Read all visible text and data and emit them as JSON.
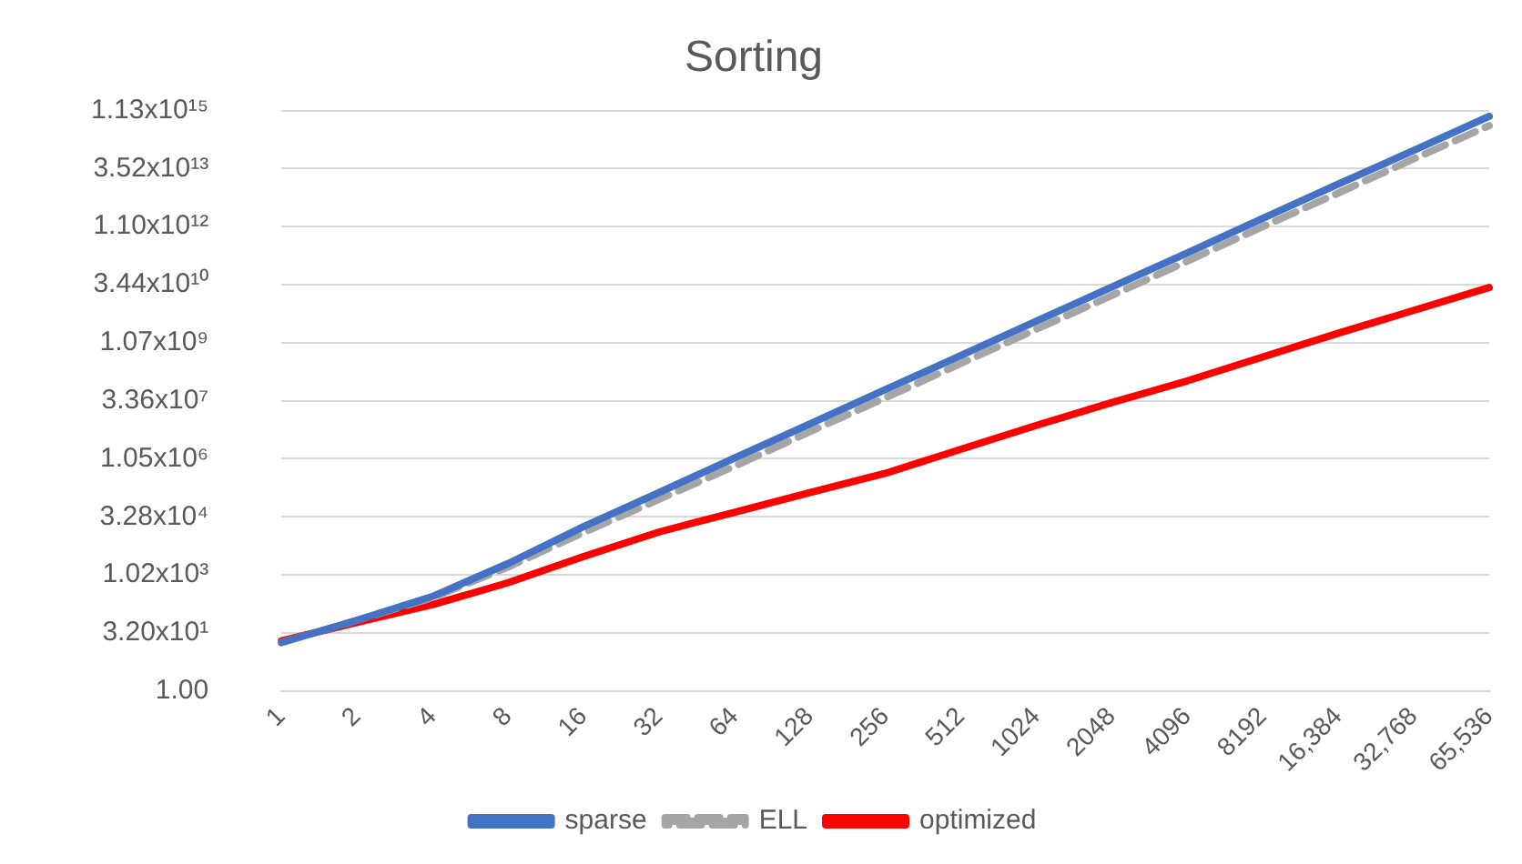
{
  "chart_data": {
    "type": "line",
    "title": "Sorting",
    "categories": [
      "1",
      "2",
      "4",
      "8",
      "16",
      "32",
      "64",
      "128",
      "256",
      "512",
      "1024",
      "2048",
      "4096",
      "8192",
      "16,384",
      "32,768",
      "65,536"
    ],
    "series": [
      {
        "name": "sparse",
        "color": "#4472c4",
        "line_style": "solid",
        "values": [
          18,
          68,
          282,
          2000,
          18200,
          140000,
          1090000,
          8400000,
          65000000,
          500000000,
          3900000000,
          30000000000,
          230000000000,
          1800000000000,
          14000000000000,
          104000000000000,
          800000000000000
        ]
      },
      {
        "name": "ELL",
        "color": "#a5a5a5",
        "line_style": "dashed",
        "values": [
          18,
          68,
          263,
          1630,
          12800,
          92700,
          670000,
          5300000,
          40000000,
          310000000,
          2400000000,
          18000000000,
          140000000000,
          1100000000000,
          8200000000000,
          63000000000000,
          460000000000000
        ]
      },
      {
        "name": "optimized",
        "color": "#ff0000",
        "line_style": "solid",
        "values": [
          20,
          60,
          172,
          640,
          3040,
          13200,
          43000,
          140000,
          440000,
          1850000,
          7700000,
          30000000,
          110000000,
          460000000,
          1900000000,
          7400000000,
          29000000000
        ]
      }
    ],
    "log": "y",
    "ylim": [
      1,
      1125899906842624
    ],
    "yticks": [
      {
        "value": 1,
        "label": "1.00"
      },
      {
        "value": 32,
        "label": "3.20x10¹"
      },
      {
        "value": 1024,
        "label": "1.02x10³"
      },
      {
        "value": 32768,
        "label": "3.28x10⁴"
      },
      {
        "value": 1048576,
        "label": "1.05x10⁶"
      },
      {
        "value": 33554432,
        "label": "3.36x10⁷"
      },
      {
        "value": 1073741824,
        "label": "1.07x10⁹"
      },
      {
        "value": 34359738368,
        "label": "3.44x10¹⁰"
      },
      {
        "value": 1099511627776,
        "label": "1.10x10¹²"
      },
      {
        "value": 35184372088832,
        "label": "3.52x10¹³"
      },
      {
        "value": 1125899906842624,
        "label": "1.13x10¹⁵"
      }
    ],
    "grid": "y",
    "legend": "bottom",
    "marker": "none"
  }
}
